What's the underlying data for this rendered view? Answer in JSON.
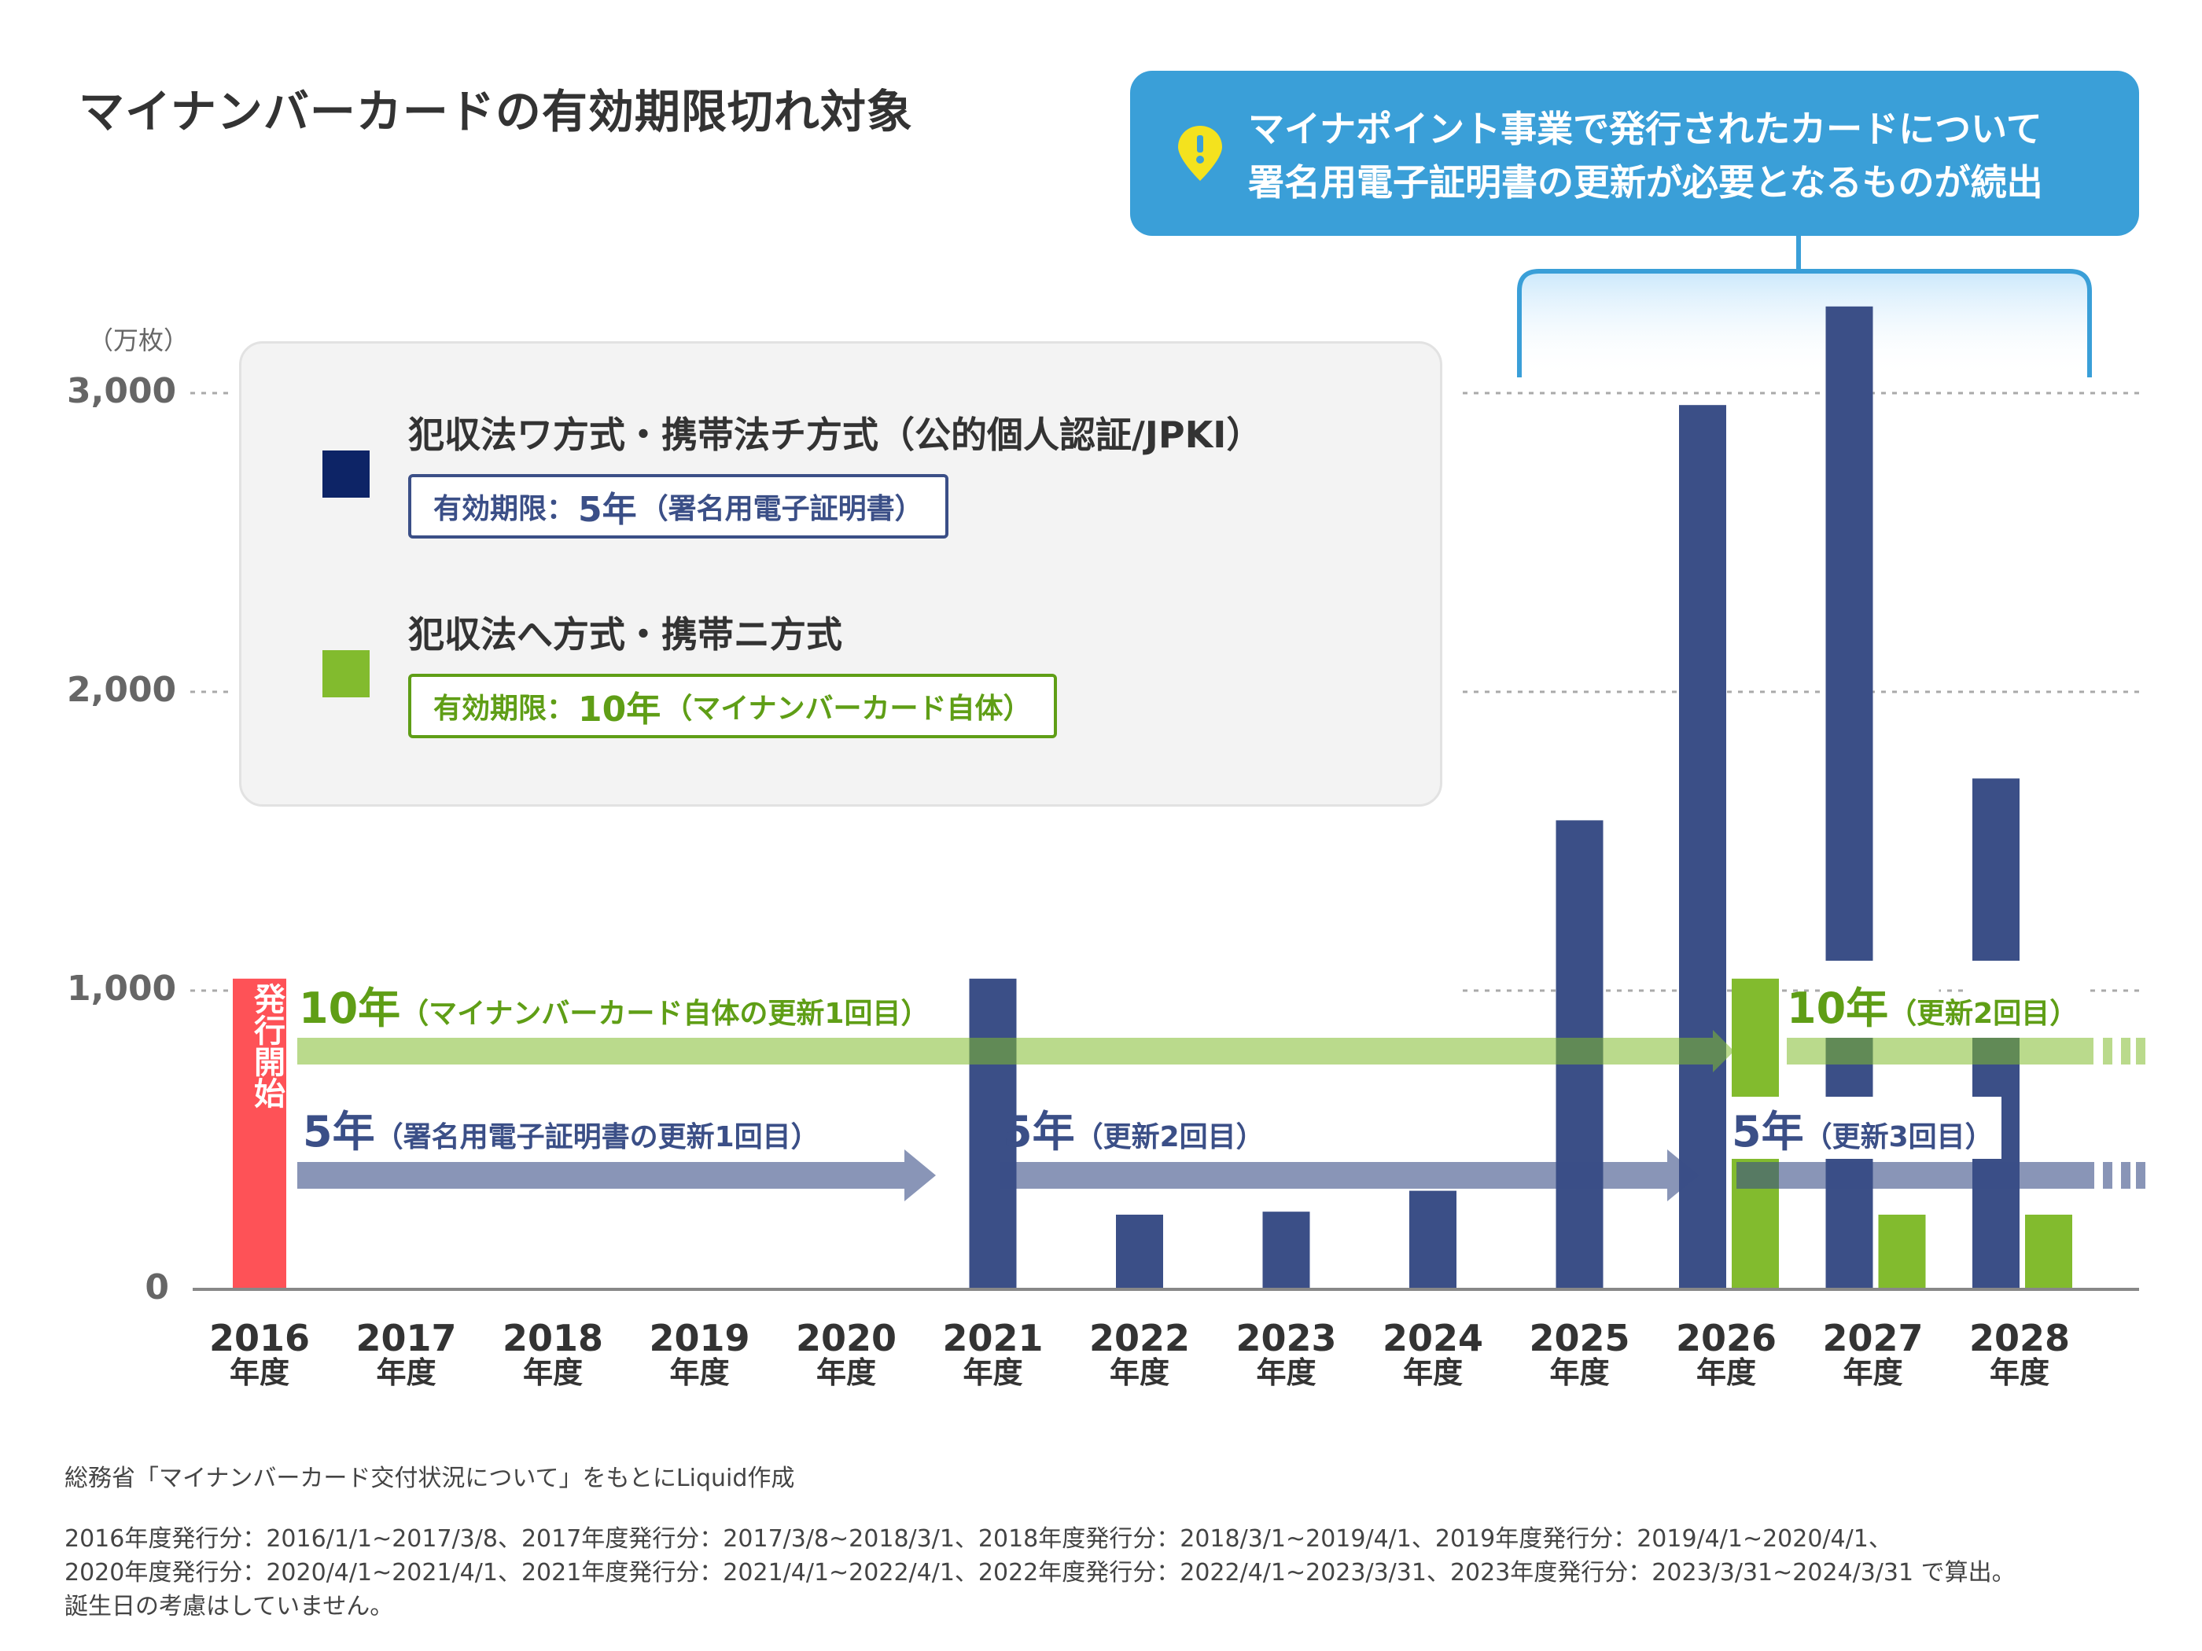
{
  "title": "マイナンバーカードの有効期限切れ対象",
  "callout": {
    "line1": "マイナポイント事業で発行されたカードについて",
    "line2": "署名用電子証明書の更新が必要となるものが続出",
    "icon": "exclamation-pin-icon"
  },
  "colors": {
    "navy": "#3b4f87",
    "green": "#82bb2e",
    "red": "#fe5257",
    "callout": "#3a9fd8",
    "legend_navy": "#0d2466"
  },
  "legend": {
    "item1": {
      "title": "犯収法ワ方式・携帯法チ方式（公的個人認証/JPKI）",
      "label": "有効期限：",
      "period": "5年",
      "detail": "（署名用電子証明書）"
    },
    "item2": {
      "title": "犯収法へ方式・携帯ニ方式",
      "label": "有効期限：",
      "period": "10年",
      "detail": "（マイナンバーカード自体）"
    }
  },
  "annotations": {
    "start_vertical": "発行開始",
    "g1_big": "10年",
    "g1_small": "（マイナンバーカード自体の更新1回目）",
    "g2_big": "10年",
    "g2_small": "（更新2回目）",
    "n1_big": "5年",
    "n1_small": "（署名用電子証明書の更新1回目）",
    "n2_big": "5年",
    "n2_small": "（更新2回目）",
    "n3_big": "5年",
    "n3_small": "（更新3回目）"
  },
  "chart_data": {
    "type": "bar",
    "ylabel": "（万枚）",
    "ylim": [
      0,
      3000
    ],
    "yticks": [
      "0",
      "1,000",
      "2,000",
      "3,000"
    ],
    "categories": [
      "2016",
      "2017",
      "2018",
      "2019",
      "2020",
      "2021",
      "2022",
      "2023",
      "2024",
      "2025",
      "2026",
      "2027",
      "2028"
    ],
    "category_suffix": "年度",
    "series": [
      {
        "name": "犯収法ワ方式・携帯法チ方式（公的個人認証/JPKI）",
        "color": "#3b4f87",
        "values": [
          1040,
          null,
          null,
          null,
          null,
          1040,
          250,
          260,
          330,
          1570,
          2960,
          3290,
          1710
        ]
      },
      {
        "name": "犯収法へ方式・携帯ニ方式",
        "color": "#82bb2e",
        "values": [
          null,
          null,
          null,
          null,
          null,
          null,
          null,
          null,
          null,
          null,
          1040,
          250,
          250
        ]
      }
    ],
    "highlight": {
      "color": "#fe5257",
      "category": "2016",
      "value": 1040
    },
    "grid": true,
    "legend_placement": "top-left"
  },
  "footnotes": {
    "source": "総務省「マイナンバーカード交付状況について」をもとにLiquid作成",
    "line1": "2016年度発行分：2016/1/1~2017/3/8、2017年度発行分：2017/3/8~2018/3/1、2018年度発行分：2018/3/1~2019/4/1、2019年度発行分：2019/4/1~2020/4/1、",
    "line2": "2020年度発行分：2020/4/1~2021/4/1、2021年度発行分：2021/4/1~2022/4/1、2022年度発行分：2022/4/1~2023/3/31、2023年度発行分：2023/3/31~2024/3/31  で算出。",
    "line3": "誕生日の考慮はしていません。"
  }
}
